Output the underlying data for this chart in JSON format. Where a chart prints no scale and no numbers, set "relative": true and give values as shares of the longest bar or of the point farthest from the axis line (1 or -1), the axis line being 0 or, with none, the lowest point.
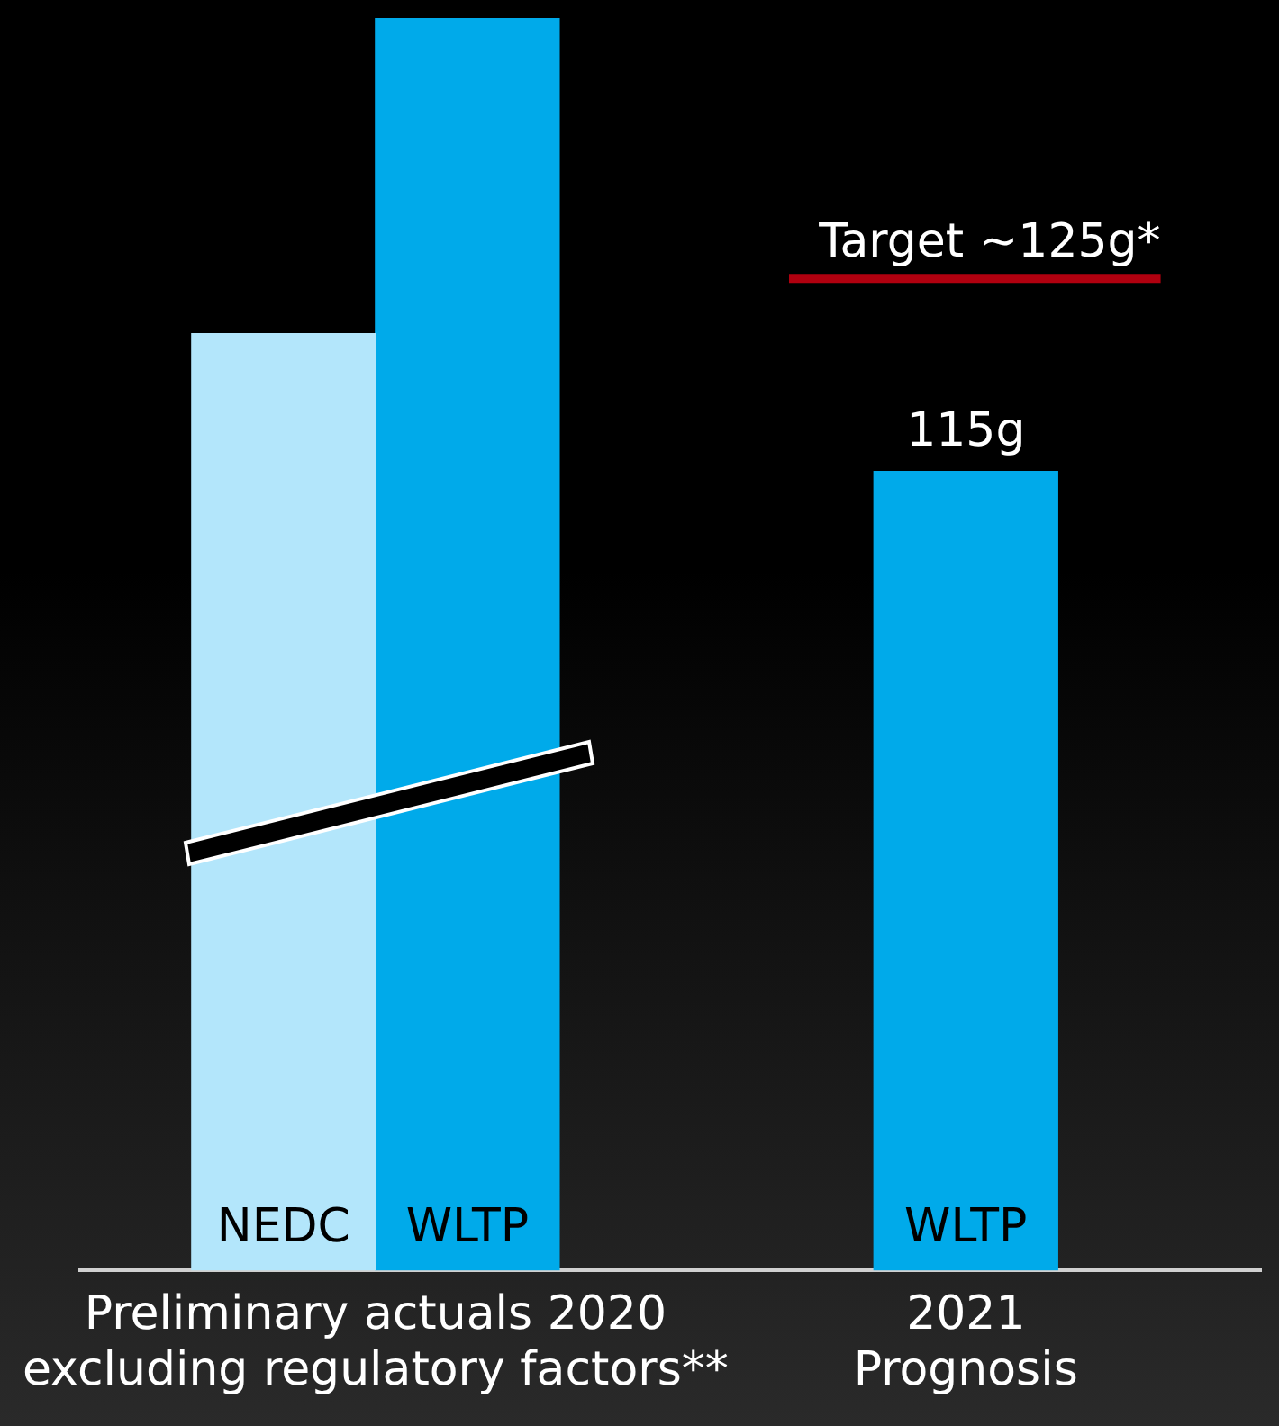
{
  "chart_data": {
    "type": "bar",
    "relative": true,
    "categories": [
      "Preliminary actuals 2020\nexcluding regulatory factors**",
      "2021\nPrognosis"
    ],
    "series": [
      {
        "name": "NEDC",
        "color": "#b3e6fb",
        "values": [
          0.748,
          null
        ]
      },
      {
        "name": "WLTP",
        "color": "#00aaea",
        "values": [
          1,
          0.638
        ]
      }
    ],
    "annotations": [
      "115g"
    ],
    "ref_lines": [
      {
        "axis": "y",
        "value": 0.792,
        "label": "Target ~125g*",
        "color": "#b0000f"
      }
    ],
    "legend": false
  }
}
